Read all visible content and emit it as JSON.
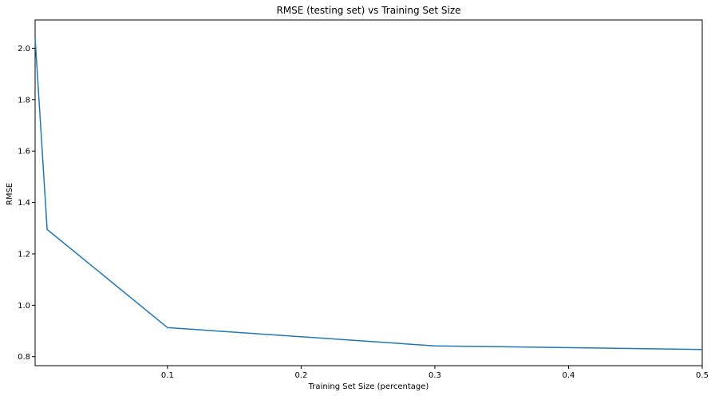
{
  "chart_data": {
    "type": "line",
    "title": "RMSE (testing set) vs Training Set Size",
    "xlabel": "Training Set Size (percentage)",
    "ylabel": "RMSE",
    "xlim": [
      0.001,
      0.5
    ],
    "ylim": [
      0.765,
      2.11
    ],
    "xticks": [
      0.1,
      0.2,
      0.3,
      0.4,
      0.5
    ],
    "xtick_labels": [
      "0.1",
      "0.2",
      "0.3",
      "0.4",
      "0.5"
    ],
    "yticks": [
      0.8,
      1.0,
      1.2,
      1.4,
      1.6,
      1.8,
      2.0
    ],
    "ytick_labels": [
      "0.8",
      "1.0",
      "1.2",
      "1.4",
      "1.6",
      "1.8",
      "2.0"
    ],
    "grid": false,
    "series": [
      {
        "color": "#1f77b4",
        "x": [
          0.001,
          0.01,
          0.1,
          0.3,
          0.5
        ],
        "y": [
          2.04,
          1.295,
          0.913,
          0.842,
          0.828
        ]
      }
    ]
  }
}
